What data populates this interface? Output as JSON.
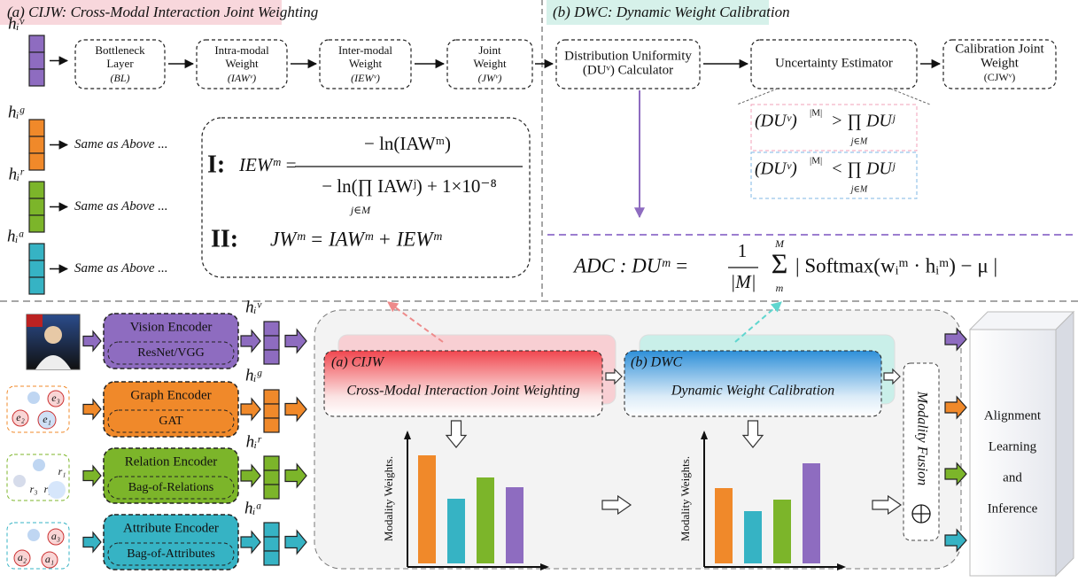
{
  "cijw": {
    "title": "(a) CIJW: Cross-Modal Interaction Joint Weighting",
    "pipeline": [
      {
        "label": [
          "Bottleneck",
          "Layer"
        ],
        "abbr": "(BL)"
      },
      {
        "label": [
          "Intra-modal",
          "Weight"
        ],
        "abbr": "(IAWᵛ)"
      },
      {
        "label": [
          "Inter-modal",
          "Weight"
        ],
        "abbr": "(IEWᵛ)"
      },
      {
        "label": [
          "Joint",
          "Weight"
        ],
        "abbr": "(JWᵛ)"
      }
    ],
    "same_as_above": "Same as Above ...",
    "eq1": {
      "tag": "I:",
      "lhs": "IEWᵐ =",
      "numerator": "− ln(IAWᵐ)",
      "denominator": "− ln(∏ IAWʲ) + 1×10⁻⁸",
      "index": "j∈M"
    },
    "eq2": {
      "tag": "II:",
      "body": "JWᵐ = IAWᵐ + IEWᵐ"
    }
  },
  "modalities": [
    "hᵢᵛ",
    "hᵢᵍ",
    "hᵢʳ",
    "hᵢᵃ"
  ],
  "dwc": {
    "title": "(b) DWC: Dynamic Weight Calibration",
    "boxes": [
      {
        "lines": [
          "Distribution Uniformity",
          "(DUᵛ) Calculator"
        ]
      },
      {
        "lines": [
          "Uncertainty Estimator"
        ]
      },
      {
        "lines": [
          "Calibration Joint",
          "Weight",
          "(CJWᵛ)"
        ]
      }
    ],
    "conditions": [
      {
        "lhs": "(DUᵛ)",
        "exp": "|M|",
        "rel": "> ∏ DUʲ",
        "index": "j∈M"
      },
      {
        "lhs": "(DUᵛ)",
        "exp": "|M|",
        "rel": "< ∏ DUʲ",
        "index": "j∈M"
      }
    ],
    "adc": {
      "lhs": "ADC : DUᵐ =",
      "numerator": "1",
      "denominator": "|M|",
      "sum": "Σ",
      "sum_top": "M",
      "sum_bottom": "m",
      "body": "| Softmax(wᵢᵐ · hᵢᵐ) − μ |"
    }
  },
  "encoders": [
    {
      "name": "Vision Encoder",
      "backbone": "ResNet/VGG"
    },
    {
      "name": "Graph Encoder",
      "backbone": "GAT"
    },
    {
      "name": "Relation Encoder",
      "backbone": "Bag-of-Relations"
    },
    {
      "name": "Attribute Encoder",
      "backbone": "Bag-of-Attributes"
    }
  ],
  "icons": {
    "graph": [
      "e₃",
      "e₂",
      "e₁"
    ],
    "relation": [
      "r₁",
      "r₂",
      "r₃"
    ],
    "attribute": [
      "a₃",
      "a₂",
      "a₁"
    ]
  },
  "framework": {
    "cijw": {
      "tag": "(a) CIJW",
      "name": "Cross-Modal Interaction Joint Weighting"
    },
    "dwc": {
      "tag": "(b) DWC",
      "name": "Dynamic Weight Calibration"
    },
    "y_axis": "Modality Weights.",
    "fusion": "Modality Fusion",
    "output": [
      "Alignment",
      "Learning",
      "and",
      "Inference"
    ]
  }
}
